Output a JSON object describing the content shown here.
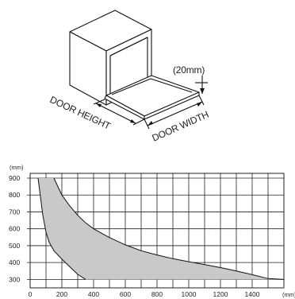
{
  "diagram": {
    "gap_label": "(20mm)",
    "door_height_label": "DOOR HEIGHT",
    "door_width_label": "DOOR WIDTH"
  },
  "chart_data": {
    "type": "area",
    "xlabel": "(mm)",
    "ylabel": "(mm)",
    "xlim": [
      0,
      1600
    ],
    "ylim": [
      250,
      900
    ],
    "x_ticks": [
      0,
      200,
      400,
      600,
      800,
      1000,
      1200,
      1400
    ],
    "y_ticks": [
      300,
      400,
      500,
      600,
      700,
      800,
      900
    ],
    "grid": true,
    "upper_curve": {
      "x": [
        150,
        200,
        250,
        300,
        350,
        400,
        500,
        600,
        700,
        800,
        900,
        1000,
        1100,
        1200,
        1300,
        1400,
        1500,
        1600
      ],
      "y": [
        900,
        800,
        735,
        680,
        635,
        600,
        548,
        505,
        470,
        445,
        423,
        405,
        388,
        370,
        350,
        328,
        305,
        300
      ]
    },
    "lower_curve": {
      "x": [
        50,
        80,
        100,
        120,
        150,
        200,
        250,
        300,
        350
      ],
      "y": [
        900,
        680,
        580,
        520,
        470,
        420,
        375,
        330,
        300
      ]
    },
    "colors": {
      "fill": "#c9c9c9",
      "stroke": "#111111",
      "grid": "#222222"
    }
  }
}
